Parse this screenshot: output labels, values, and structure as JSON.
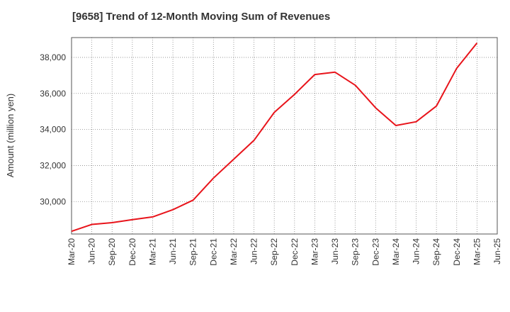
{
  "title": "[9658]  Trend of 12-Month Moving Sum of Revenues",
  "chart_data": {
    "type": "line",
    "title": "[9658]  Trend of 12-Month Moving Sum of Revenues",
    "xlabel": "",
    "ylabel": "Amount (million yen)",
    "x_tick_labels": [
      "Mar-20",
      "Jun-20",
      "Sep-20",
      "Dec-20",
      "Mar-21",
      "Jun-21",
      "Sep-21",
      "Dec-21",
      "Mar-22",
      "Jun-22",
      "Sep-22",
      "Dec-22",
      "Mar-23",
      "Jun-23",
      "Sep-23",
      "Dec-23",
      "Mar-24",
      "Jun-24",
      "Sep-24",
      "Dec-24",
      "Mar-25",
      "Jun-25"
    ],
    "y_ticks": [
      30000,
      32000,
      34000,
      36000,
      38000
    ],
    "y_tick_labels": [
      "30,000",
      "32,000",
      "34,000",
      "36,000",
      "38,000"
    ],
    "ylim": [
      28200,
      39100
    ],
    "grid": true,
    "line_color": "#e8141b",
    "series": [
      {
        "values": [
          [
            0,
            28350
          ],
          [
            1,
            28730
          ],
          [
            2,
            28830
          ],
          [
            3,
            29000
          ],
          [
            4,
            29150
          ],
          [
            5,
            29550
          ],
          [
            6,
            30080
          ],
          [
            7,
            31300
          ],
          [
            8,
            32350
          ],
          [
            9,
            33400
          ],
          [
            10,
            34950
          ],
          [
            11,
            35950
          ],
          [
            12,
            37050
          ],
          [
            13,
            37180
          ],
          [
            14,
            36450
          ],
          [
            15,
            35200
          ],
          [
            16,
            34220
          ],
          [
            17,
            34430
          ],
          [
            18,
            35300
          ],
          [
            19,
            37400
          ],
          [
            20,
            38800
          ]
        ]
      }
    ]
  }
}
